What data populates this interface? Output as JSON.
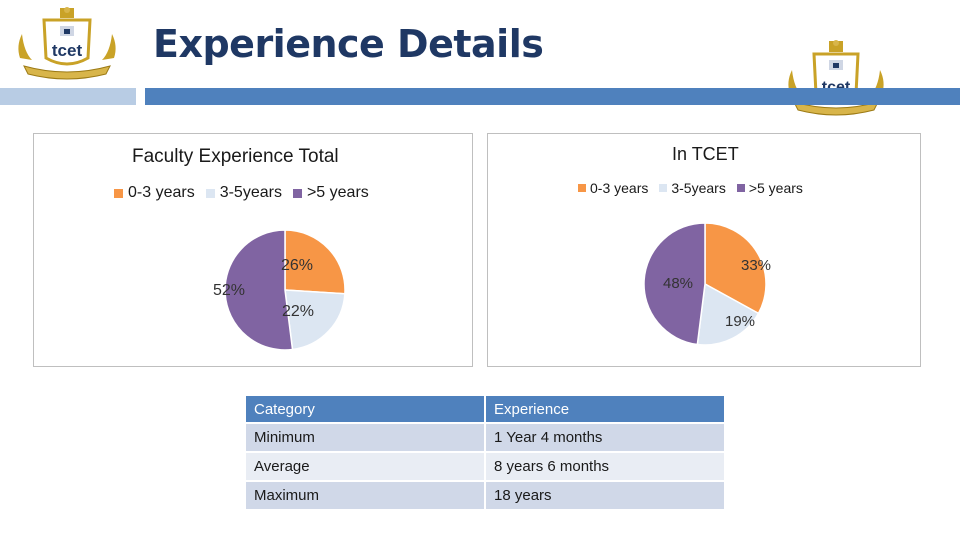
{
  "slide": {
    "title": "Experience Details"
  },
  "colors": {
    "bar_light": "#b8cce4",
    "bar_dark": "#4f81bd",
    "title": "#1f3864",
    "gold": "#c9a227"
  },
  "logos": {
    "left": {
      "icon": "tcet-emblem-icon",
      "text": "tcet"
    },
    "right": {
      "icon": "tcet-emblem-icon",
      "text": "tcet"
    }
  },
  "chart_data": [
    {
      "type": "pie",
      "title": "Faculty Experience Total",
      "legend_position": "top",
      "slices": [
        {
          "label": "0-3 years",
          "value": 26,
          "display": "26%",
          "color": "#f79646"
        },
        {
          "label": "3-5years",
          "value": 22,
          "display": "22%",
          "color": "#dce6f2"
        },
        {
          "label": ">5 years",
          "value": 52,
          "display": "52%",
          "color": "#8064a2"
        }
      ]
    },
    {
      "type": "pie",
      "title": "In TCET",
      "legend_position": "top",
      "slices": [
        {
          "label": "0-3 years",
          "value": 33,
          "display": "33%",
          "color": "#f79646"
        },
        {
          "label": "3-5years",
          "value": 19,
          "display": "19%",
          "color": "#dce6f2"
        },
        {
          "label": ">5 years",
          "value": 48,
          "display": "48%",
          "color": "#8064a2"
        }
      ]
    }
  ],
  "table": {
    "headers": [
      "Category",
      "Experience"
    ],
    "rows": [
      [
        "Minimum",
        "1 Year 4 months"
      ],
      [
        "Average",
        "8 years 6 months"
      ],
      [
        "Maximum",
        "18 years"
      ]
    ]
  }
}
